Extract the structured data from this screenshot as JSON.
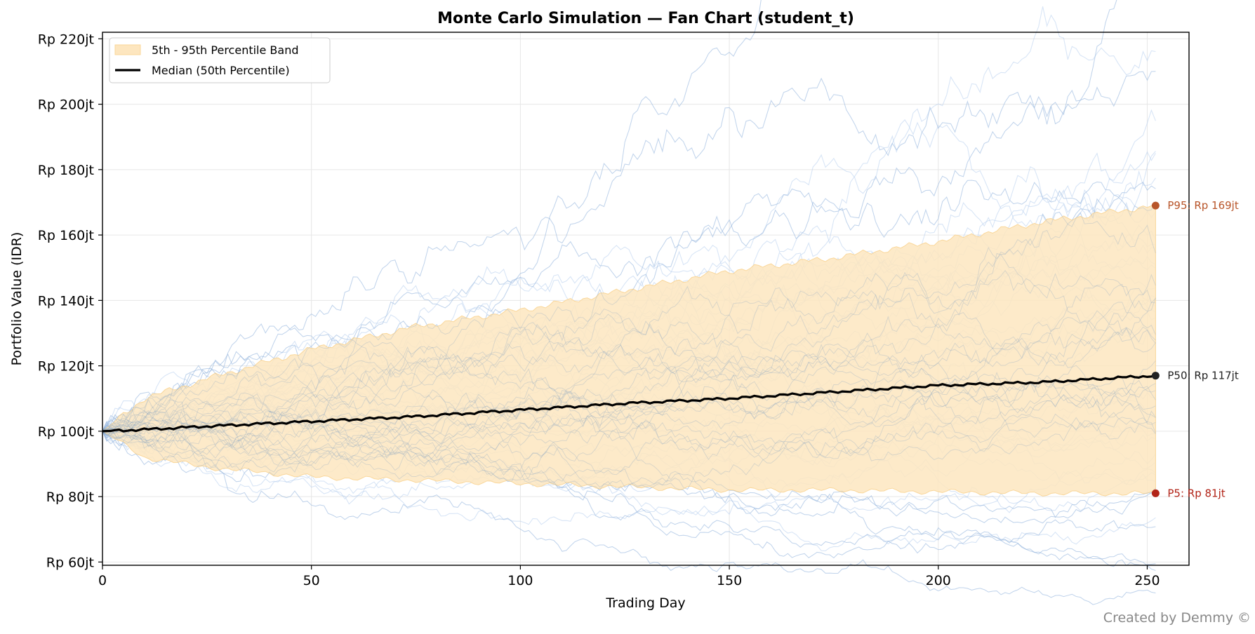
{
  "chart_data": {
    "type": "line",
    "title": "Monte Carlo Simulation — Fan Chart (student_t)",
    "xlabel": "Trading Day",
    "ylabel": "Portfolio Value (IDR)",
    "xlim": [
      0,
      260
    ],
    "ylim": [
      59,
      222
    ],
    "x_ticks": [
      0,
      50,
      100,
      150,
      200,
      250
    ],
    "y_ticks": [
      {
        "value": 60,
        "label": "Rp 60jt"
      },
      {
        "value": 80,
        "label": "Rp 80jt"
      },
      {
        "value": 100,
        "label": "Rp 100jt"
      },
      {
        "value": 120,
        "label": "Rp 120jt"
      },
      {
        "value": 140,
        "label": "Rp 140jt"
      },
      {
        "value": 160,
        "label": "Rp 160jt"
      },
      {
        "value": 180,
        "label": "Rp 180jt"
      },
      {
        "value": 200,
        "label": "Rp 200jt"
      },
      {
        "value": 220,
        "label": "Rp 220jt"
      }
    ],
    "grid": true,
    "legend_position": "top-left",
    "legend": [
      {
        "label": "5th - 95th Percentile Band",
        "kind": "band"
      },
      {
        "label": "Median (50th Percentile)",
        "kind": "line"
      }
    ],
    "colors": {
      "band": "#fde6bf",
      "median": "#000000",
      "paths": "#b8d0ee",
      "p95": "#b8552a",
      "p50": "#222222",
      "p5": "#b22418"
    },
    "percentile_series": [
      {
        "name": "P95",
        "x": [
          0,
          10,
          25,
          50,
          75,
          100,
          125,
          150,
          175,
          200,
          225,
          252
        ],
        "values": [
          100,
          110,
          116,
          125,
          132,
          137,
          143,
          149,
          153,
          158,
          164,
          169
        ]
      },
      {
        "name": "P50",
        "x": [
          0,
          10,
          25,
          50,
          75,
          100,
          125,
          150,
          175,
          200,
          225,
          252
        ],
        "values": [
          100,
          100.5,
          101.5,
          103,
          104.5,
          106.5,
          108.5,
          110,
          112,
          114,
          115,
          117
        ]
      },
      {
        "name": "P5",
        "x": [
          0,
          10,
          25,
          50,
          75,
          100,
          125,
          150,
          175,
          200,
          225,
          252
        ],
        "values": [
          100,
          92,
          89,
          86,
          85,
          84,
          83,
          82,
          82,
          81.5,
          81,
          81
        ]
      }
    ],
    "end_markers": [
      {
        "series": "P95",
        "x": 252,
        "value": 169,
        "label": "P95: Rp 169jt"
      },
      {
        "series": "P50",
        "x": 252,
        "value": 117,
        "label": "P50: Rp 117jt"
      },
      {
        "series": "P5",
        "x": 252,
        "value": 81,
        "label": "P5: Rp 81jt"
      }
    ],
    "simulation": {
      "paths": 60,
      "days": 252,
      "start_value": 100
    }
  },
  "footer": {
    "credit": "Created by Demmy ©"
  }
}
